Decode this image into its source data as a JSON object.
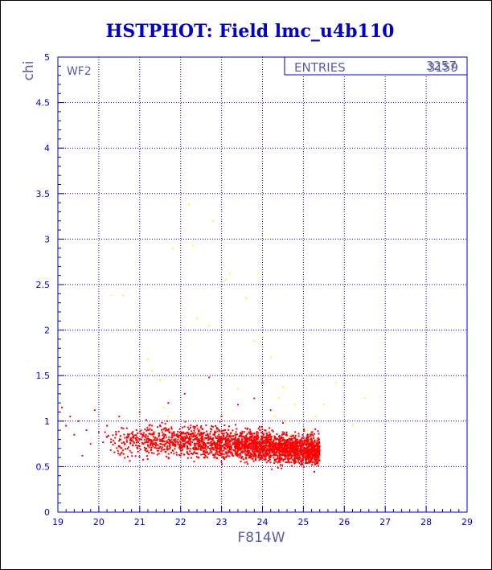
{
  "chart_data": {
    "type": "scatter",
    "title": "HSTPHOT: Field lmc_u4b110",
    "xlabel": "F814W",
    "ylabel": "chi",
    "panel_label": "WF2",
    "stats_label": "ENTRIES",
    "stats_value": "3159",
    "stats_value_overlap": "3257",
    "xlim": [
      19,
      29
    ],
    "ylim": [
      0,
      5
    ],
    "xticks": [
      "19",
      "20",
      "21",
      "22",
      "23",
      "24",
      "25",
      "26",
      "27",
      "28",
      "29"
    ],
    "yticks": [
      "0",
      "0.5",
      "1",
      "1.5",
      "2",
      "2.5",
      "3",
      "3.5",
      "4",
      "4.5",
      "5"
    ],
    "grid": true,
    "series": [
      {
        "points": [
          [
            19.1,
            1.15
          ],
          [
            19.2,
            0.95
          ],
          [
            19.3,
            1.05
          ],
          [
            19.4,
            0.85
          ],
          [
            19.5,
            1.0
          ],
          [
            19.6,
            0.62
          ],
          [
            19.7,
            0.9
          ],
          [
            19.8,
            0.75
          ],
          [
            19.9,
            1.12
          ],
          [
            20.0,
            0.88
          ],
          [
            20.2,
            0.95
          ],
          [
            20.3,
            0.8
          ],
          [
            20.5,
            1.05
          ],
          [
            20.6,
            0.92
          ],
          [
            20.8,
            0.78
          ],
          [
            21.0,
            1.1
          ],
          [
            21.1,
            0.87
          ],
          [
            21.3,
            0.95
          ],
          [
            21.5,
            0.72
          ],
          [
            21.7,
            1.2
          ],
          [
            21.9,
            0.85
          ],
          [
            22.1,
            1.3
          ],
          [
            22.4,
            0.95
          ],
          [
            22.7,
            1.48
          ],
          [
            23.0,
            1.05
          ],
          [
            23.4,
            1.18
          ],
          [
            23.8,
            1.25
          ],
          [
            24.0,
            1.42
          ],
          [
            24.2,
            1.12
          ],
          [
            24.5,
            0.98
          ],
          [
            24.8,
            0.88
          ]
        ],
        "cloud": {
          "x": [
            20.0,
            25.4
          ],
          "center": 0.78,
          "spread": 0.08,
          "count": 2600
        }
      },
      {
        "points": [
          [
            20.3,
            2.38
          ],
          [
            20.6,
            2.38
          ],
          [
            21.2,
            1.68
          ],
          [
            21.3,
            1.55
          ],
          [
            21.5,
            1.45
          ],
          [
            21.6,
            1.15
          ],
          [
            21.7,
            1.05
          ],
          [
            21.8,
            2.9
          ],
          [
            22.0,
            2.15
          ],
          [
            22.2,
            3.38
          ],
          [
            22.3,
            2.93
          ],
          [
            22.4,
            2.13
          ],
          [
            22.7,
            2.05
          ],
          [
            22.8,
            3.2
          ],
          [
            23.0,
            2.78
          ],
          [
            23.1,
            2.55
          ],
          [
            23.2,
            2.62
          ],
          [
            23.4,
            1.35
          ],
          [
            23.6,
            2.35
          ],
          [
            23.8,
            1.88
          ],
          [
            23.9,
            2.62
          ],
          [
            24.0,
            3.05
          ],
          [
            24.0,
            1.95
          ],
          [
            24.2,
            1.7
          ],
          [
            24.3,
            1.05
          ],
          [
            24.4,
            1.25
          ],
          [
            24.5,
            1.38
          ],
          [
            24.6,
            1.0
          ],
          [
            24.7,
            0.85
          ],
          [
            24.8,
            1.18
          ],
          [
            24.9,
            0.98
          ],
          [
            25.0,
            1.5
          ],
          [
            25.1,
            0.9
          ],
          [
            25.3,
            1.05
          ],
          [
            25.5,
            1.18
          ],
          [
            25.8,
            1.42
          ],
          [
            26.0,
            1.08
          ],
          [
            26.2,
            0.95
          ],
          [
            26.5,
            1.25
          ]
        ]
      }
    ]
  },
  "colors": {
    "title": "#0000cc",
    "axis": "#0000cc",
    "grid": "#0000cc",
    "label": "#5a5aaa",
    "series_1": "#ff0000",
    "series_2": "#ffff00"
  }
}
